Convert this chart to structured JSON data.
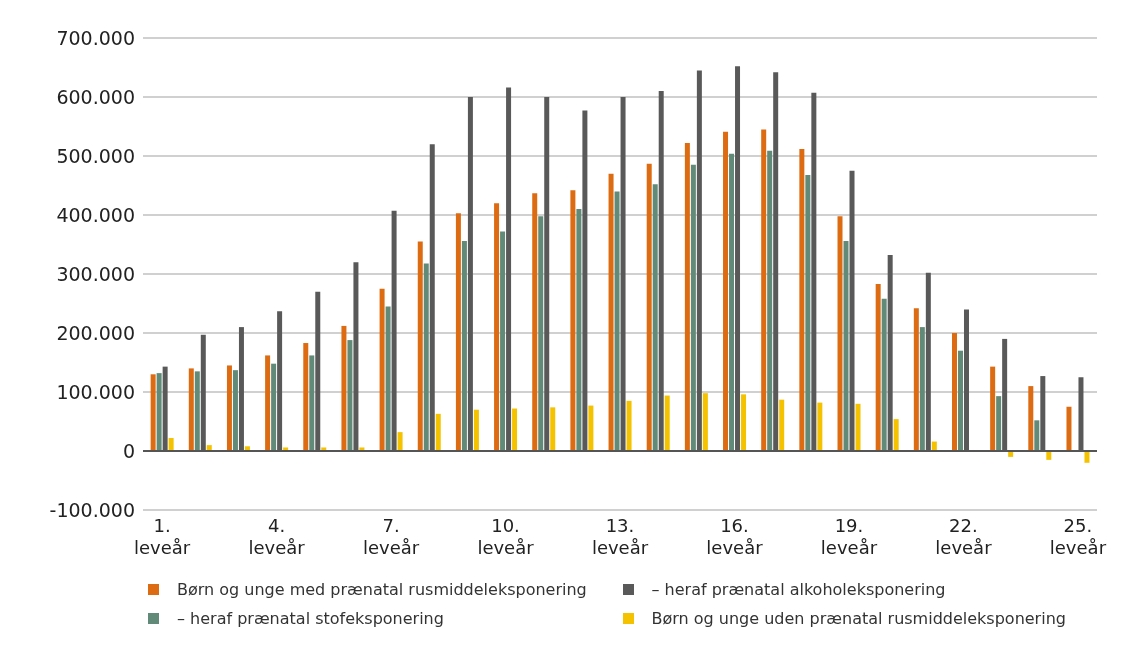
{
  "chart_data": {
    "type": "bar",
    "categories": [
      "1. leveår",
      null,
      null,
      "4. leveår",
      null,
      null,
      "7. leveår",
      null,
      null,
      "10. leveår",
      null,
      null,
      "13. leveår",
      null,
      null,
      "16. leveår",
      null,
      null,
      "19. leveår",
      null,
      null,
      "22. leveår",
      null,
      null,
      "25. leveår"
    ],
    "series": [
      {
        "name": "Børn og unge med prænatal rusmiddeleksponering",
        "color": "#dd6b12",
        "values": [
          130000,
          140000,
          145000,
          162000,
          183000,
          212000,
          275000,
          355000,
          403000,
          420000,
          437000,
          442000,
          470000,
          487000,
          522000,
          541000,
          545000,
          512000,
          398000,
          283000,
          242000,
          200000,
          143000,
          110000,
          75000
        ]
      },
      {
        "name": "– heraf prænatal stofeksponering",
        "color": "#628a78",
        "values": [
          132000,
          135000,
          137000,
          148000,
          162000,
          188000,
          245000,
          318000,
          356000,
          372000,
          398000,
          410000,
          440000,
          452000,
          485000,
          504000,
          509000,
          468000,
          356000,
          258000,
          210000,
          170000,
          93000,
          52000,
          0
        ]
      },
      {
        "name": "– heraf prænatal alkoholeksponering",
        "color": "#595959",
        "values": [
          143000,
          197000,
          210000,
          237000,
          270000,
          320000,
          407000,
          520000,
          600000,
          616000,
          600000,
          577000,
          600000,
          610000,
          645000,
          652000,
          642000,
          607000,
          475000,
          332000,
          302000,
          240000,
          190000,
          127000,
          125000
        ]
      },
      {
        "name": "Børn og unge uden prænatal rusmiddeleksponering",
        "color": "#f5c200",
        "values": [
          22000,
          10000,
          8000,
          6000,
          6000,
          6000,
          32000,
          63000,
          70000,
          72000,
          74000,
          77000,
          85000,
          94000,
          98000,
          96000,
          87000,
          82000,
          80000,
          54000,
          16000,
          null,
          -10000,
          -15000,
          -20000
        ]
      }
    ],
    "ylim": [
      -100000,
      700000
    ],
    "yticks": [
      {
        "value": -100000,
        "label": "-100.000"
      },
      0,
      {
        "value": 100000,
        "label": "100.000"
      },
      {
        "value": 200000,
        "label": "200.000"
      },
      {
        "value": 300000,
        "label": "300.000"
      },
      {
        "value": 400000,
        "label": "400.000"
      },
      {
        "value": 500000,
        "label": "500.000"
      },
      {
        "value": 600000,
        "label": "600.000"
      },
      {
        "value": 700000,
        "label": "700.000"
      }
    ],
    "grid": "y",
    "legend": "bottom"
  }
}
